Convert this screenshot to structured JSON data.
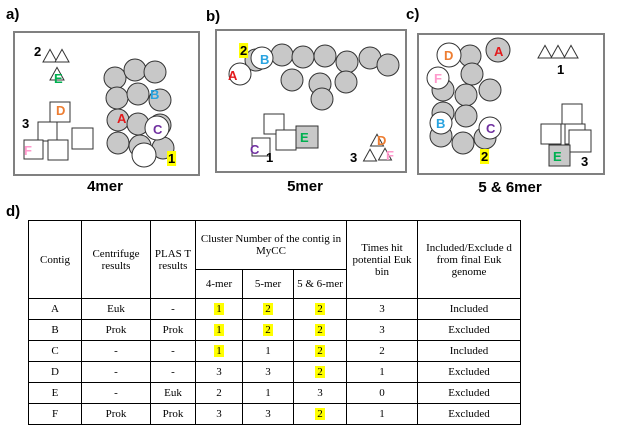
{
  "panels": [
    {
      "id": "a",
      "label": "a)",
      "caption": "4mer",
      "markers": [
        "2",
        "3",
        "1"
      ],
      "letters": [
        {
          "text": "A",
          "color": "#e31a1c"
        },
        {
          "text": "B",
          "color": "#29a3e0"
        },
        {
          "text": "C",
          "color": "#7030a0"
        },
        {
          "text": "D",
          "color": "#ed7d31"
        },
        {
          "text": "E",
          "color": "#00b050"
        },
        {
          "text": "F",
          "color": "#ff99cc"
        }
      ]
    },
    {
      "id": "b",
      "label": "b)",
      "caption": "5mer",
      "markers": [
        "2",
        "1",
        "3"
      ],
      "letters": [
        {
          "text": "A",
          "color": "#e31a1c"
        },
        {
          "text": "B",
          "color": "#29a3e0"
        },
        {
          "text": "C",
          "color": "#7030a0"
        },
        {
          "text": "D",
          "color": "#ed7d31"
        },
        {
          "text": "E",
          "color": "#00b050"
        },
        {
          "text": "F",
          "color": "#ff99cc"
        }
      ]
    },
    {
      "id": "c",
      "label": "c)",
      "caption": "5 & 6mer",
      "markers": [
        "1",
        "2",
        "3"
      ],
      "letters": [
        {
          "text": "A",
          "color": "#e31a1c"
        },
        {
          "text": "B",
          "color": "#29a3e0"
        },
        {
          "text": "C",
          "color": "#7030a0"
        },
        {
          "text": "D",
          "color": "#ed7d31"
        },
        {
          "text": "E",
          "color": "#00b050"
        },
        {
          "text": "F",
          "color": "#ff99cc"
        }
      ]
    }
  ],
  "colors": {
    "highlight": "#ffff00",
    "cluster_fill": "#c8c8c8"
  },
  "table": {
    "label": "d)",
    "headers": {
      "contig": "Contig",
      "centrifuge": "Centrifuge results",
      "plast": "PLAS T results",
      "cluster_group": "Cluster Number of the contig in MyCC",
      "k4": "4-mer",
      "k5": "5-mer",
      "k56": "5 & 6-mer",
      "times_hit": "Times hit potential Euk bin",
      "included": "Included/Exclude d from final Euk genome"
    },
    "rows": [
      {
        "contig": "A",
        "centrifuge": "Euk",
        "plast": "-",
        "k4": "1",
        "k5": "2",
        "k56": "2",
        "hits": "3",
        "status": "Included",
        "hl": [
          true,
          true,
          true
        ]
      },
      {
        "contig": "B",
        "centrifuge": "Prok",
        "plast": "Prok",
        "k4": "1",
        "k5": "2",
        "k56": "2",
        "hits": "3",
        "status": "Excluded",
        "hl": [
          true,
          true,
          true
        ]
      },
      {
        "contig": "C",
        "centrifuge": "-",
        "plast": "-",
        "k4": "1",
        "k5": "1",
        "k56": "2",
        "hits": "2",
        "status": "Included",
        "hl": [
          true,
          false,
          true
        ]
      },
      {
        "contig": "D",
        "centrifuge": "-",
        "plast": "-",
        "k4": "3",
        "k5": "3",
        "k56": "2",
        "hits": "1",
        "status": "Excluded",
        "hl": [
          false,
          false,
          true
        ]
      },
      {
        "contig": "E",
        "centrifuge": "-",
        "plast": "Euk",
        "k4": "2",
        "k5": "1",
        "k56": "3",
        "hits": "0",
        "status": "Excluded",
        "hl": [
          false,
          false,
          false
        ]
      },
      {
        "contig": "F",
        "centrifuge": "Prok",
        "plast": "Prok",
        "k4": "3",
        "k5": "3",
        "k56": "2",
        "hits": "1",
        "status": "Excluded",
        "hl": [
          false,
          false,
          true
        ]
      }
    ]
  }
}
